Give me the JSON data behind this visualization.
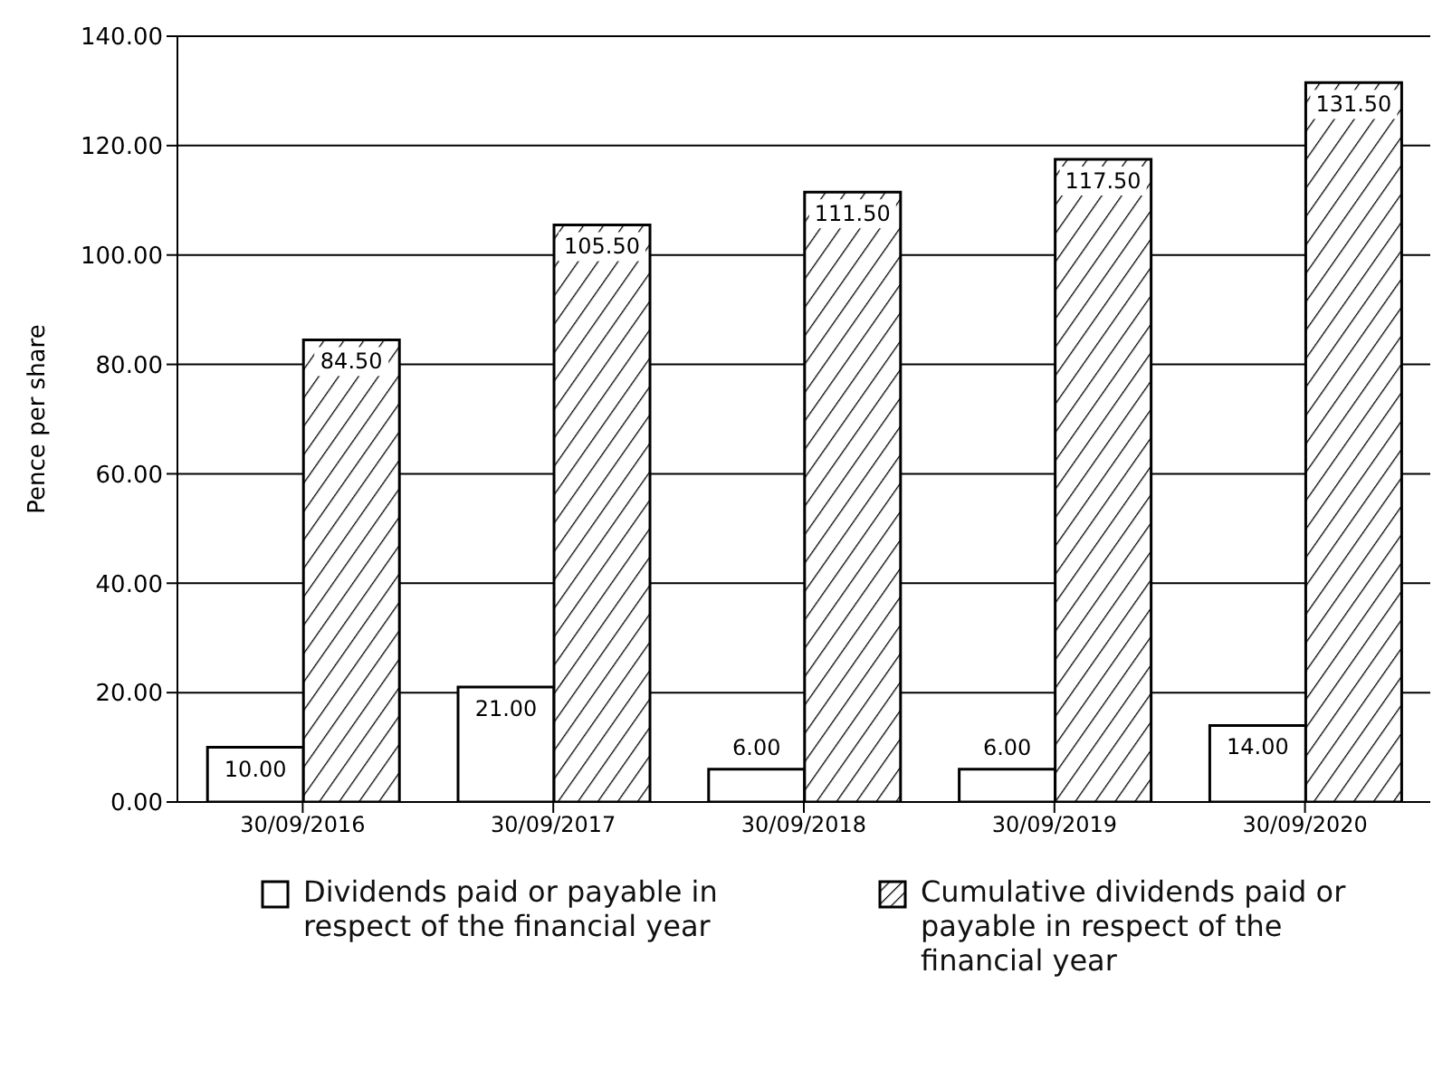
{
  "chart_data": {
    "type": "bar",
    "ylabel": "Pence per share",
    "categories": [
      "30/09/2016",
      "30/09/2017",
      "30/09/2018",
      "30/09/2019",
      "30/09/2020"
    ],
    "series": [
      {
        "name": "Dividends paid or payable in respect of the financial year",
        "color": "#ffffff",
        "values": [
          10.0,
          21.0,
          6.0,
          6.0,
          14.0
        ],
        "value_labels": [
          "10.00",
          "21.00",
          "6.00",
          "6.00",
          "14.00"
        ]
      },
      {
        "name": "Cumulative dividends paid or payable in respect of the financial year",
        "color": "#000000",
        "values": [
          84.5,
          105.5,
          111.5,
          117.5,
          131.5
        ],
        "value_labels": [
          "84.50",
          "105.50",
          "111.50",
          "117.50",
          "131.50"
        ]
      }
    ],
    "ylim": [
      0,
      140
    ],
    "yticks": [
      {
        "value": 0,
        "label": "0.00"
      },
      {
        "value": 20,
        "label": "20.00"
      },
      {
        "value": 40,
        "label": "40.00"
      },
      {
        "value": 60,
        "label": "60.00"
      },
      {
        "value": 80,
        "label": "80.00"
      },
      {
        "value": 100,
        "label": "100.00"
      },
      {
        "value": 120,
        "label": "120.00"
      },
      {
        "value": 140,
        "label": "140.00"
      }
    ],
    "grid": "y",
    "legend": "bottom"
  }
}
